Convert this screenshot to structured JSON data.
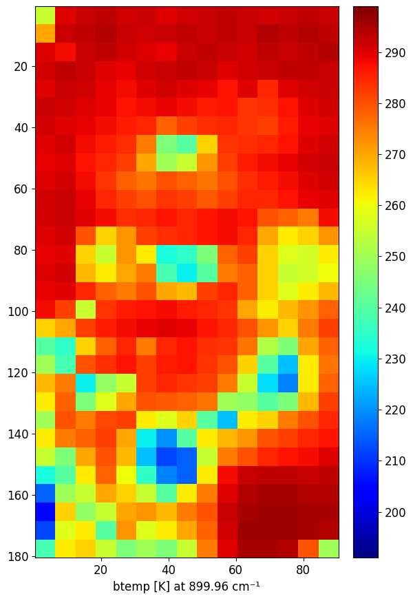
{
  "chart_data": {
    "type": "heatmap",
    "xlabel": "btemp [K] at 899.96 cm⁻¹",
    "xlim": [
      0.5,
      90.5
    ],
    "ylim": [
      180.5,
      0.5
    ],
    "xticks": [
      20,
      40,
      60,
      80
    ],
    "yticks": [
      20,
      40,
      60,
      80,
      100,
      120,
      140,
      160,
      180
    ],
    "x_edges": [
      0.5,
      6.5,
      12.5,
      18.5,
      24.5,
      30.5,
      36.5,
      42.5,
      48.5,
      54.5,
      60.5,
      66.5,
      72.5,
      78.5,
      84.5,
      90.5
    ],
    "y_edges": [
      0.5,
      6.5,
      12.5,
      18.5,
      24.5,
      30.5,
      36.5,
      42.5,
      48.5,
      54.5,
      60.5,
      66.5,
      72.5,
      78.5,
      84.5,
      90.5,
      96.5,
      102.5,
      108.5,
      114.5,
      120.5,
      126.5,
      132.5,
      138.5,
      144.5,
      150.5,
      156.5,
      162.5,
      168.5,
      174.5,
      180.5
    ],
    "cells": [
      [
        255,
        290,
        292,
        293,
        291,
        292,
        290,
        291,
        292,
        293,
        292,
        291,
        292,
        293,
        292
      ],
      [
        270,
        292,
        293,
        294,
        292,
        291,
        292,
        293,
        292,
        293,
        292,
        294,
        293,
        294,
        293
      ],
      [
        290,
        288,
        292,
        293,
        291,
        290,
        289,
        292,
        293,
        292,
        291,
        293,
        292,
        293,
        294
      ],
      [
        291,
        293,
        292,
        290,
        289,
        291,
        292,
        293,
        292,
        290,
        291,
        292,
        293,
        293,
        292
      ],
      [
        290,
        292,
        291,
        289,
        288,
        290,
        291,
        290,
        289,
        287,
        290,
        285,
        290,
        291,
        292
      ],
      [
        292,
        291,
        290,
        289,
        287,
        288,
        289,
        288,
        286,
        287,
        283,
        284,
        287,
        290,
        291
      ],
      [
        291,
        290,
        289,
        288,
        286,
        285,
        278,
        282,
        284,
        285,
        283,
        282,
        286,
        289,
        290
      ],
      [
        290,
        291,
        288,
        286,
        284,
        275,
        245,
        240,
        265,
        283,
        284,
        285,
        287,
        290,
        291
      ],
      [
        289,
        290,
        287,
        285,
        282,
        270,
        250,
        255,
        272,
        282,
        286,
        288,
        289,
        291,
        292
      ],
      [
        290,
        291,
        288,
        283,
        278,
        276,
        280,
        278,
        276,
        280,
        284,
        286,
        288,
        290,
        291
      ],
      [
        291,
        292,
        289,
        285,
        282,
        280,
        283,
        282,
        279,
        282,
        285,
        285,
        287,
        289,
        290
      ],
      [
        291,
        292,
        290,
        288,
        284,
        285,
        287,
        285,
        287,
        288,
        287,
        280,
        278,
        275,
        288
      ],
      [
        290,
        291,
        280,
        265,
        272,
        282,
        284,
        285,
        287,
        288,
        285,
        270,
        262,
        265,
        272
      ],
      [
        289,
        290,
        265,
        255,
        272,
        262,
        232,
        235,
        245,
        278,
        282,
        265,
        258,
        256,
        262
      ],
      [
        290,
        291,
        268,
        262,
        270,
        275,
        238,
        230,
        240,
        275,
        278,
        265,
        255,
        256,
        260
      ],
      [
        289,
        290,
        285,
        278,
        275,
        280,
        270,
        268,
        282,
        285,
        278,
        265,
        258,
        262,
        268
      ],
      [
        288,
        282,
        255,
        283,
        286,
        287,
        288,
        286,
        285,
        283,
        270,
        262,
        268,
        272,
        278
      ],
      [
        265,
        270,
        282,
        286,
        288,
        289,
        290,
        289,
        287,
        285,
        280,
        272,
        265,
        275,
        282
      ],
      [
        240,
        235,
        265,
        278,
        285,
        275,
        285,
        287,
        284,
        283,
        276,
        252,
        245,
        270,
        278
      ],
      [
        250,
        238,
        280,
        284,
        287,
        282,
        286,
        287,
        283,
        280,
        265,
        240,
        225,
        262,
        276
      ],
      [
        268,
        275,
        230,
        248,
        255,
        282,
        285,
        283,
        282,
        275,
        255,
        228,
        218,
        262,
        278
      ],
      [
        262,
        278,
        245,
        258,
        270,
        280,
        279,
        278,
        276,
        250,
        248,
        240,
        245,
        268,
        282
      ],
      [
        250,
        280,
        275,
        281,
        282,
        262,
        258,
        265,
        240,
        225,
        262,
        265,
        275,
        280,
        285
      ],
      [
        262,
        275,
        278,
        282,
        270,
        230,
        220,
        240,
        262,
        268,
        272,
        280,
        282,
        285,
        287
      ],
      [
        255,
        245,
        270,
        280,
        268,
        225,
        212,
        215,
        255,
        275,
        280,
        285,
        287,
        288,
        290
      ],
      [
        232,
        240,
        262,
        278,
        260,
        235,
        218,
        215,
        262,
        288,
        292,
        293,
        293,
        292,
        293
      ],
      [
        215,
        250,
        255,
        270,
        265,
        255,
        240,
        262,
        275,
        290,
        294,
        295,
        295,
        294,
        294
      ],
      [
        205,
        265,
        248,
        255,
        270,
        272,
        268,
        275,
        280,
        292,
        295,
        296,
        296,
        295,
        295
      ],
      [
        212,
        258,
        262,
        240,
        272,
        258,
        262,
        270,
        278,
        291,
        296,
        296,
        296,
        295,
        294
      ],
      [
        238,
        262,
        265,
        255,
        245,
        250,
        245,
        255,
        275,
        290,
        295,
        295,
        294,
        280,
        250
      ]
    ],
    "colorbar": {
      "range": [
        191,
        299
      ],
      "ticks": [
        200,
        210,
        220,
        230,
        240,
        250,
        260,
        270,
        280,
        290
      ]
    }
  }
}
